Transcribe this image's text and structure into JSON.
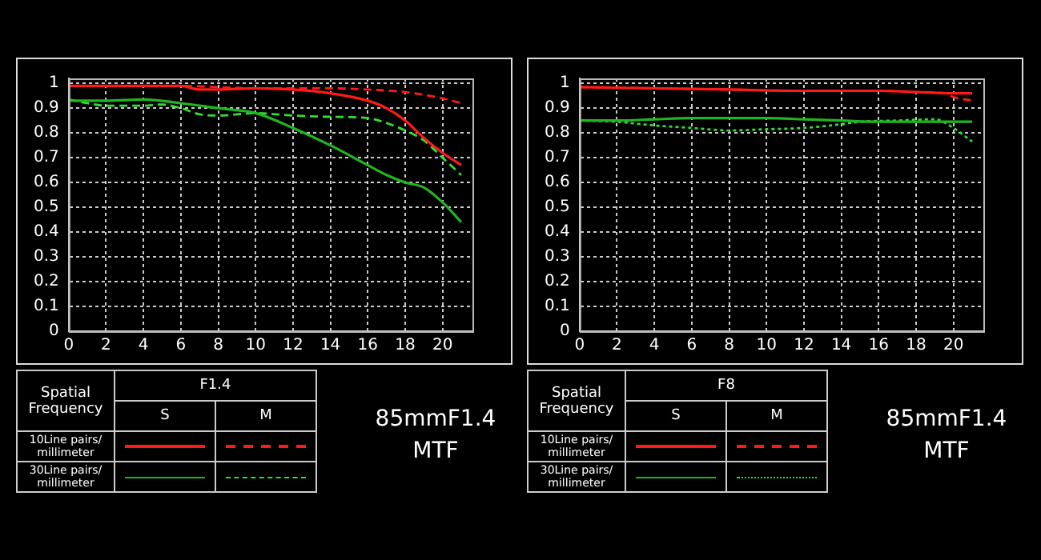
{
  "chart_data": [
    {
      "type": "line",
      "title": "85mmF1.4\nMTF",
      "legend_title": "F1.4",
      "grid": true,
      "marker": "none",
      "annotations": [
        "Spatial\nFrequency",
        "S",
        "M",
        "10Line pairs/\nmillimeter",
        "30Line pairs/\nmillimeter"
      ],
      "xlim": [
        0,
        21.6
      ],
      "xticks": [
        0,
        2,
        4,
        6,
        8,
        10,
        12,
        14,
        16,
        18,
        20
      ],
      "ylim": [
        0,
        1.02
      ],
      "yticks": [
        0,
        0.1,
        0.2,
        0.3,
        0.4,
        0.5,
        0.6,
        0.7,
        0.8,
        0.9,
        1
      ],
      "series": [
        {
          "color": "#ff1a1a",
          "line_style": "solid",
          "x": [
            0,
            2,
            4,
            6,
            7,
            8,
            10,
            12,
            14,
            16,
            17,
            18,
            19,
            20,
            21
          ],
          "values": [
            0.99,
            0.99,
            0.99,
            0.99,
            0.975,
            0.975,
            0.98,
            0.975,
            0.96,
            0.93,
            0.9,
            0.85,
            0.78,
            0.72,
            0.67
          ]
        },
        {
          "color": "#ff1a1a",
          "line_style": "dashed",
          "x": [
            0,
            6,
            8,
            10,
            12,
            14,
            16,
            18,
            20,
            21
          ],
          "values": [
            0.99,
            0.99,
            0.985,
            0.98,
            0.98,
            0.98,
            0.975,
            0.965,
            0.94,
            0.92
          ]
        },
        {
          "color": "#22b522",
          "line_style": "solid",
          "x": [
            0,
            2,
            4,
            6,
            8,
            10,
            12,
            14,
            16,
            17,
            18,
            19,
            20,
            21
          ],
          "values": [
            0.93,
            0.93,
            0.935,
            0.92,
            0.9,
            0.88,
            0.82,
            0.75,
            0.67,
            0.63,
            0.6,
            0.58,
            0.52,
            0.44
          ]
        },
        {
          "color": "#33dd33",
          "line_style": "dashed",
          "x": [
            0,
            1,
            2,
            4,
            5,
            6,
            7,
            8,
            9,
            10,
            12,
            14,
            16,
            17,
            18,
            19,
            20,
            21
          ],
          "values": [
            0.935,
            0.92,
            0.91,
            0.91,
            0.915,
            0.9,
            0.875,
            0.87,
            0.875,
            0.88,
            0.87,
            0.865,
            0.86,
            0.84,
            0.81,
            0.77,
            0.7,
            0.63
          ]
        }
      ]
    },
    {
      "type": "line",
      "title": "85mmF1.4\nMTF",
      "legend_title": "F8",
      "grid": true,
      "marker": "none",
      "annotations": [
        "Spatial\nFrequency",
        "S",
        "M",
        "10Line pairs/\nmillimeter",
        "30Line pairs/\nmillimeter"
      ],
      "xlim": [
        0,
        21.6
      ],
      "xticks": [
        0,
        2,
        4,
        6,
        8,
        10,
        12,
        14,
        16,
        18,
        20
      ],
      "ylim": [
        0,
        1.02
      ],
      "yticks": [
        0,
        0.1,
        0.2,
        0.3,
        0.4,
        0.5,
        0.6,
        0.7,
        0.8,
        0.9,
        1
      ],
      "series": [
        {
          "color": "#ff1a1a",
          "line_style": "solid",
          "x": [
            0,
            4,
            8,
            12,
            16,
            18,
            20,
            21
          ],
          "values": [
            0.985,
            0.98,
            0.975,
            0.97,
            0.97,
            0.965,
            0.96,
            0.96
          ]
        },
        {
          "color": "#ff1a1a",
          "line_style": "dashed",
          "x": [
            0,
            8,
            12,
            16,
            18,
            19.5,
            20,
            21
          ],
          "values": [
            0.985,
            0.975,
            0.97,
            0.97,
            0.965,
            0.96,
            0.945,
            0.93
          ]
        },
        {
          "color": "#22b522",
          "line_style": "solid",
          "x": [
            0,
            2,
            4,
            6,
            8,
            10,
            12,
            14,
            16,
            18,
            20,
            21
          ],
          "values": [
            0.85,
            0.85,
            0.855,
            0.86,
            0.86,
            0.86,
            0.855,
            0.85,
            0.845,
            0.845,
            0.845,
            0.845
          ]
        },
        {
          "color": "#33dd33",
          "line_style": "dotted",
          "x": [
            0,
            2,
            4,
            6,
            8,
            10,
            12,
            14,
            15,
            17,
            19,
            20,
            21
          ],
          "values": [
            0.85,
            0.845,
            0.83,
            0.82,
            0.81,
            0.815,
            0.82,
            0.835,
            0.845,
            0.85,
            0.855,
            0.82,
            0.765
          ]
        }
      ]
    }
  ]
}
